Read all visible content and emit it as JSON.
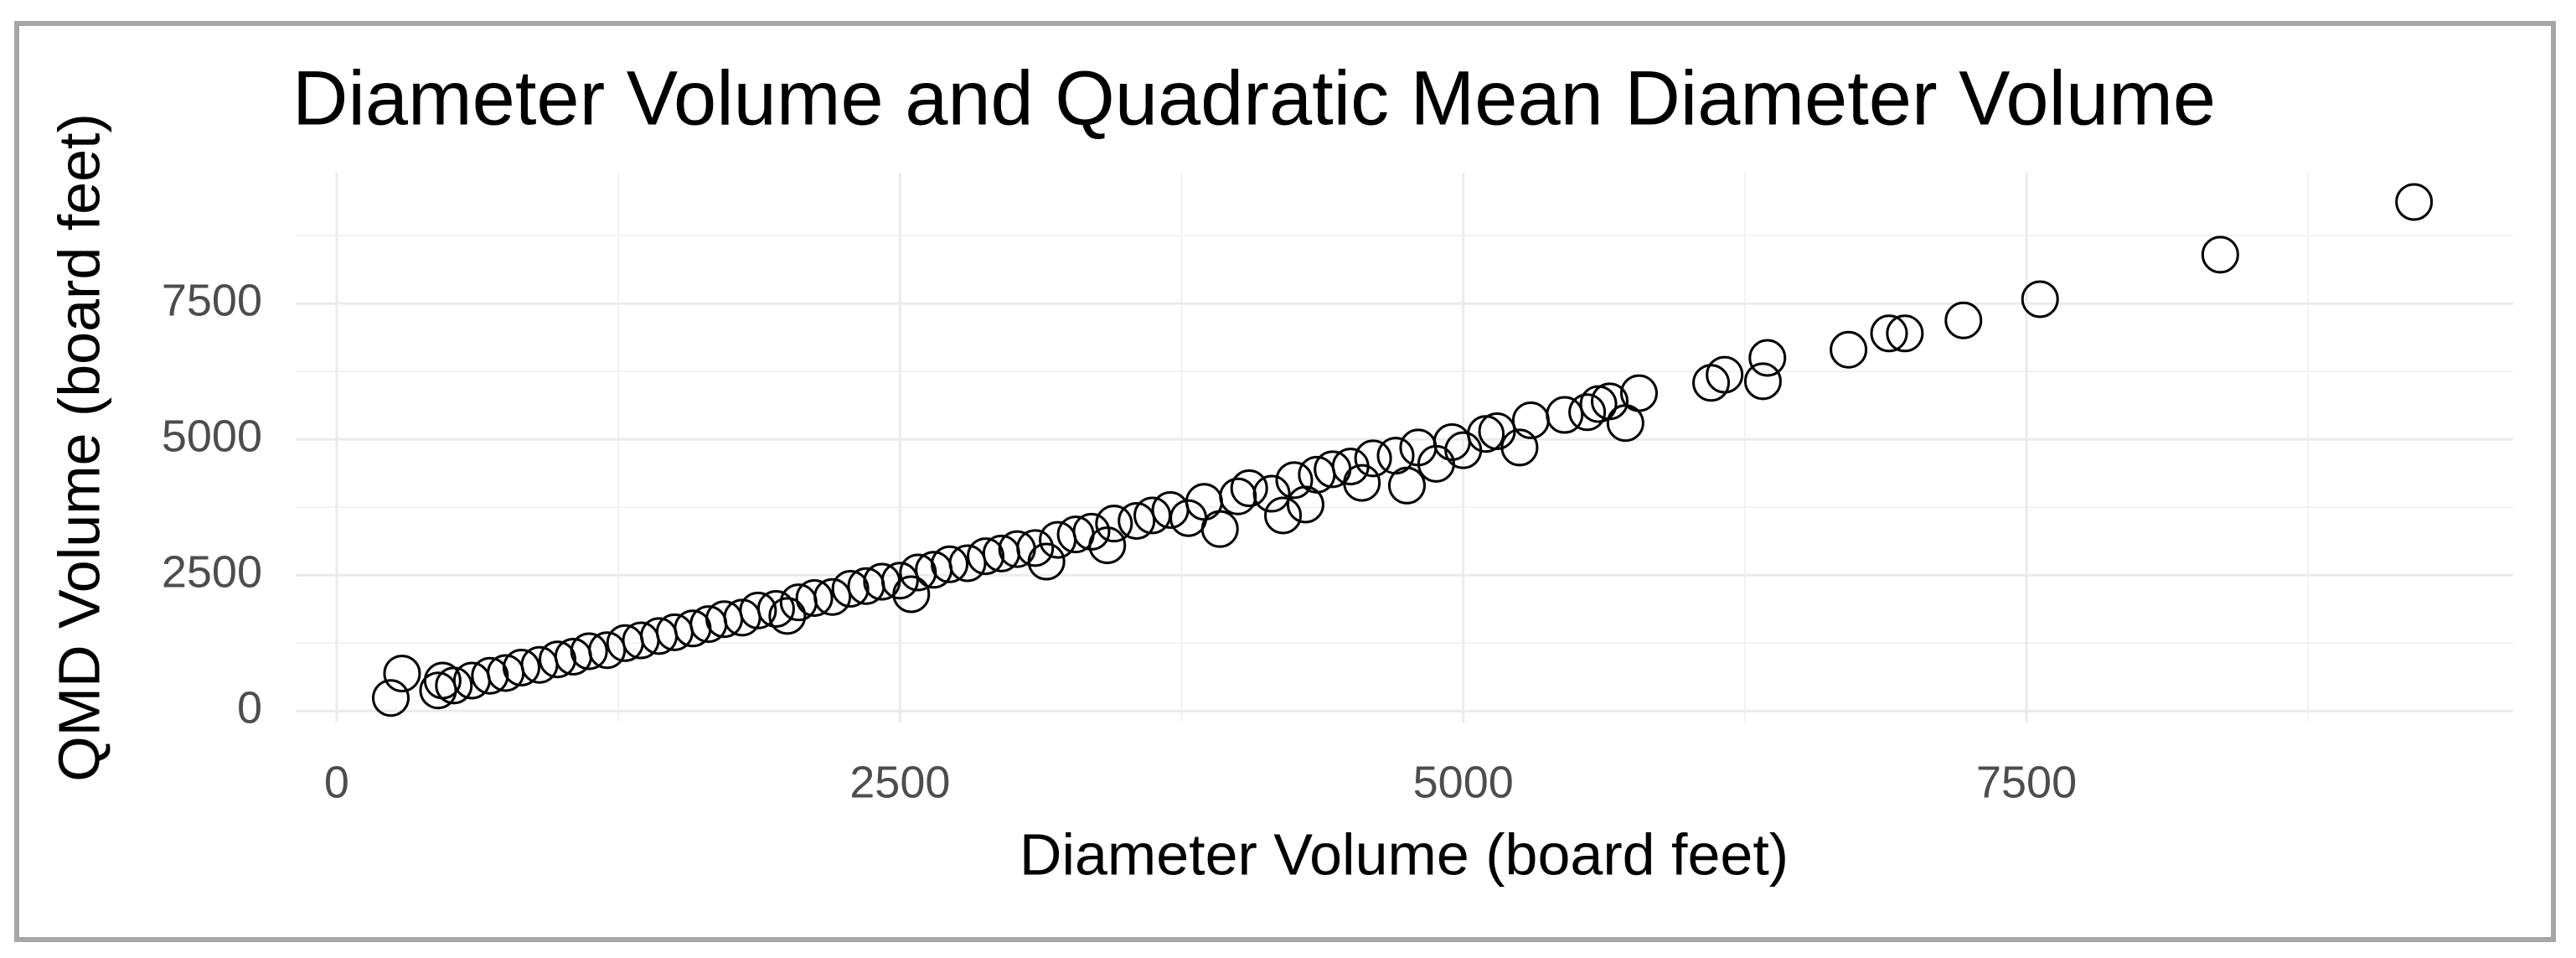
{
  "chart_data": {
    "type": "scatter",
    "title": "Diameter Volume and Quadratic Mean Diameter Volume",
    "x_label": "Diameter Volume (board feet)",
    "y_label": "QMD Volume (board feet)",
    "xlim": [
      -182,
      9660
    ],
    "ylim": [
      -211,
      9909
    ],
    "xticks": [
      0,
      2500,
      5000,
      7500
    ],
    "yticks": [
      0,
      2500,
      5000,
      7500
    ],
    "x_minor_ticks": [
      1250,
      3750,
      6250,
      8750
    ],
    "y_minor_ticks": [
      1250,
      3750,
      6250,
      8750
    ],
    "grid": true,
    "color": "#000000",
    "x": [
      240,
      290,
      450,
      470,
      520,
      600,
      680,
      750,
      820,
      900,
      980,
      1050,
      1120,
      1200,
      1280,
      1350,
      1430,
      1500,
      1580,
      1650,
      1720,
      1800,
      1870,
      1950,
      2000,
      2050,
      2120,
      2200,
      2280,
      2350,
      2420,
      2500,
      2550,
      2580,
      2650,
      2720,
      2800,
      2880,
      2950,
      3020,
      3100,
      3150,
      3200,
      3280,
      3350,
      3420,
      3450,
      3550,
      3620,
      3700,
      3780,
      3850,
      3920,
      4000,
      4050,
      4150,
      4200,
      4250,
      4300,
      4350,
      4420,
      4500,
      4550,
      4600,
      4700,
      4750,
      4800,
      4880,
      4950,
      5000,
      5100,
      5150,
      5250,
      5300,
      5450,
      5550,
      5600,
      5650,
      5720,
      5780,
      6100,
      6160,
      6330,
      6350,
      6710,
      6890,
      6960,
      7220,
      7560,
      8360,
      9220
    ],
    "y": [
      240,
      690,
      380,
      560,
      470,
      560,
      650,
      700,
      800,
      850,
      950,
      1000,
      1100,
      1120,
      1250,
      1300,
      1380,
      1450,
      1520,
      1600,
      1690,
      1720,
      1850,
      1880,
      1750,
      2000,
      2080,
      2100,
      2250,
      2300,
      2380,
      2400,
      2150,
      2550,
      2600,
      2700,
      2720,
      2850,
      2900,
      2980,
      3000,
      2750,
      3150,
      3250,
      3300,
      3050,
      3450,
      3500,
      3600,
      3700,
      3550,
      3850,
      3350,
      3950,
      4100,
      4000,
      3600,
      4250,
      3800,
      4350,
      4450,
      4500,
      4200,
      4650,
      4700,
      4150,
      4850,
      4550,
      4950,
      4800,
      5100,
      5150,
      4850,
      5350,
      5450,
      5500,
      5650,
      5700,
      5300,
      5850,
      6040,
      6190,
      6070,
      6500,
      6650,
      6950,
      6950,
      7190,
      7580,
      8400,
      9370
    ]
  }
}
